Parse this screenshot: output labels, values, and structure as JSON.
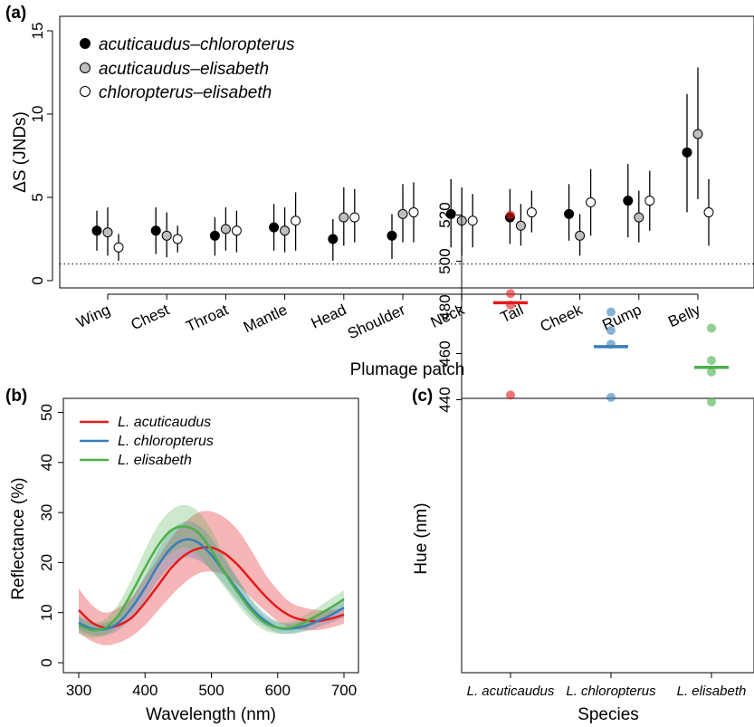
{
  "chart_data": [
    {
      "panel": "(a)",
      "type": "scatter",
      "xlabel": "Plumage patch",
      "ylabel": "ΔS (JNDs)",
      "ylim": [
        0,
        15
      ],
      "yticks": [
        0,
        5,
        10,
        15
      ],
      "reference_line": 1,
      "categories": [
        "Wing",
        "Chest",
        "Throat",
        "Mantle",
        "Head",
        "Shoulder",
        "Neck",
        "Tail",
        "Cheek",
        "Rump",
        "Belly"
      ],
      "legend_position": "top-left",
      "series": [
        {
          "name": "acuticaudus–chloropterus",
          "color": "#000000",
          "values": [
            3.0,
            3.0,
            2.7,
            3.2,
            2.5,
            2.7,
            4.0,
            3.8,
            4.0,
            4.8,
            7.7
          ],
          "lower": [
            1.8,
            1.6,
            1.5,
            1.8,
            1.2,
            1.3,
            2.0,
            2.2,
            2.4,
            2.6,
            4.1
          ],
          "upper": [
            4.2,
            4.4,
            3.8,
            4.6,
            3.7,
            4.0,
            6.1,
            5.5,
            5.8,
            7.0,
            11.2
          ]
        },
        {
          "name": "acuticaudus–elisabeth",
          "color": "#bebebe",
          "values": [
            2.9,
            2.7,
            3.1,
            3.0,
            3.8,
            4.0,
            3.6,
            3.3,
            2.7,
            3.8,
            8.8
          ],
          "lower": [
            1.5,
            1.4,
            1.8,
            1.7,
            2.1,
            2.3,
            1.5,
            2.1,
            1.5,
            2.3,
            4.9
          ],
          "upper": [
            4.4,
            4.1,
            4.4,
            4.4,
            5.6,
            5.8,
            5.6,
            4.6,
            4.0,
            5.4,
            12.8
          ]
        },
        {
          "name": "chloropterus–elisabeth",
          "color": "#ffffff",
          "values": [
            2.0,
            2.5,
            3.0,
            3.6,
            3.8,
            4.1,
            3.6,
            4.1,
            4.7,
            4.8,
            4.1
          ],
          "lower": [
            1.2,
            1.7,
            1.7,
            1.8,
            2.3,
            2.3,
            2.0,
            2.9,
            2.7,
            3.0,
            2.1
          ],
          "upper": [
            2.8,
            3.3,
            4.2,
            5.3,
            5.5,
            5.9,
            5.2,
            5.4,
            6.7,
            6.6,
            6.1
          ]
        }
      ]
    },
    {
      "panel": "(b)",
      "type": "line",
      "xlabel": "Wavelength (nm)",
      "ylabel": "Reflectance (%)",
      "xlim": [
        300,
        700
      ],
      "ylim": [
        0,
        50
      ],
      "xticks": [
        300,
        400,
        500,
        600,
        700
      ],
      "yticks": [
        0,
        10,
        20,
        30,
        40,
        50
      ],
      "x": [
        300,
        320,
        340,
        360,
        380,
        400,
        420,
        440,
        460,
        480,
        500,
        520,
        540,
        560,
        580,
        600,
        620,
        640,
        660,
        680,
        700
      ],
      "legend_position": "top-left",
      "series": [
        {
          "name": "L. acuticaudus",
          "color": "#e41a1c",
          "values": [
            10.5,
            8.0,
            7.0,
            7.5,
            9.0,
            12.0,
            15.5,
            19.0,
            21.5,
            22.8,
            23.0,
            21.8,
            19.5,
            16.5,
            13.5,
            11.0,
            9.3,
            8.5,
            8.3,
            8.8,
            9.6
          ],
          "lower": [
            6.0,
            4.3,
            3.5,
            4.0,
            5.3,
            7.5,
            10.5,
            13.5,
            16.0,
            17.8,
            18.2,
            17.5,
            15.5,
            13.0,
            10.5,
            8.3,
            7.0,
            6.5,
            6.5,
            7.0,
            7.8
          ],
          "upper": [
            14.8,
            11.5,
            10.0,
            11.0,
            13.0,
            17.0,
            21.0,
            25.0,
            28.0,
            30.0,
            30.2,
            29.0,
            26.5,
            22.5,
            18.0,
            14.5,
            12.0,
            11.0,
            10.5,
            10.5,
            11.0
          ]
        },
        {
          "name": "L. chloropterus",
          "color": "#377eb8",
          "values": [
            8.0,
            6.8,
            6.7,
            8.0,
            11.0,
            15.0,
            19.5,
            23.0,
            24.6,
            24.0,
            21.5,
            18.0,
            14.5,
            11.0,
            8.5,
            7.0,
            6.8,
            7.3,
            8.3,
            9.5,
            11.0
          ],
          "lower": [
            6.5,
            5.5,
            5.5,
            6.5,
            9.0,
            12.5,
            16.5,
            19.5,
            21.0,
            20.5,
            18.5,
            15.5,
            12.3,
            9.3,
            7.2,
            6.0,
            5.8,
            6.2,
            7.0,
            8.0,
            9.0
          ],
          "upper": [
            9.5,
            8.0,
            8.0,
            9.5,
            13.0,
            17.5,
            22.5,
            26.5,
            28.2,
            27.5,
            24.8,
            20.7,
            16.8,
            12.8,
            10.0,
            8.2,
            7.8,
            8.5,
            9.7,
            11.2,
            13.0
          ]
        },
        {
          "name": "L. elisabeth",
          "color": "#4daf4a",
          "values": [
            7.5,
            6.5,
            7.0,
            9.5,
            14.0,
            19.0,
            23.5,
            26.5,
            27.2,
            26.0,
            22.5,
            18.0,
            14.0,
            10.5,
            8.0,
            7.0,
            7.0,
            8.0,
            9.5,
            11.0,
            12.7
          ],
          "lower": [
            5.8,
            5.0,
            5.5,
            7.5,
            11.5,
            16.0,
            19.5,
            22.0,
            23.0,
            21.5,
            18.5,
            15.0,
            11.5,
            8.5,
            6.5,
            5.8,
            5.8,
            6.5,
            8.0,
            9.5,
            11.0
          ],
          "upper": [
            9.2,
            8.0,
            8.7,
            11.8,
            16.8,
            22.5,
            27.5,
            30.5,
            31.5,
            30.2,
            26.5,
            21.2,
            16.5,
            12.5,
            9.5,
            8.2,
            8.2,
            9.5,
            11.0,
            12.8,
            14.5
          ]
        }
      ]
    },
    {
      "panel": "(c)",
      "type": "scatter",
      "xlabel": "Species",
      "ylabel": "Hue (nm)",
      "ylim": [
        425,
        530
      ],
      "yticks": [
        440,
        460,
        480,
        500,
        520
      ],
      "categories": [
        "L. acuticaudus",
        "L. chloropterus",
        "L. elisabeth"
      ],
      "groups": [
        {
          "name": "L. acuticaudus",
          "color": "#e41a1c",
          "points": [
            520,
            486,
            481,
            442
          ],
          "mean": 482
        },
        {
          "name": "L. chloropterus",
          "color": "#377eb8",
          "points": [
            478,
            470,
            464,
            441
          ],
          "mean": 463
        },
        {
          "name": "L. elisabeth",
          "color": "#4daf4a",
          "points": [
            471,
            457,
            452,
            439
          ],
          "mean": 454
        }
      ]
    }
  ]
}
